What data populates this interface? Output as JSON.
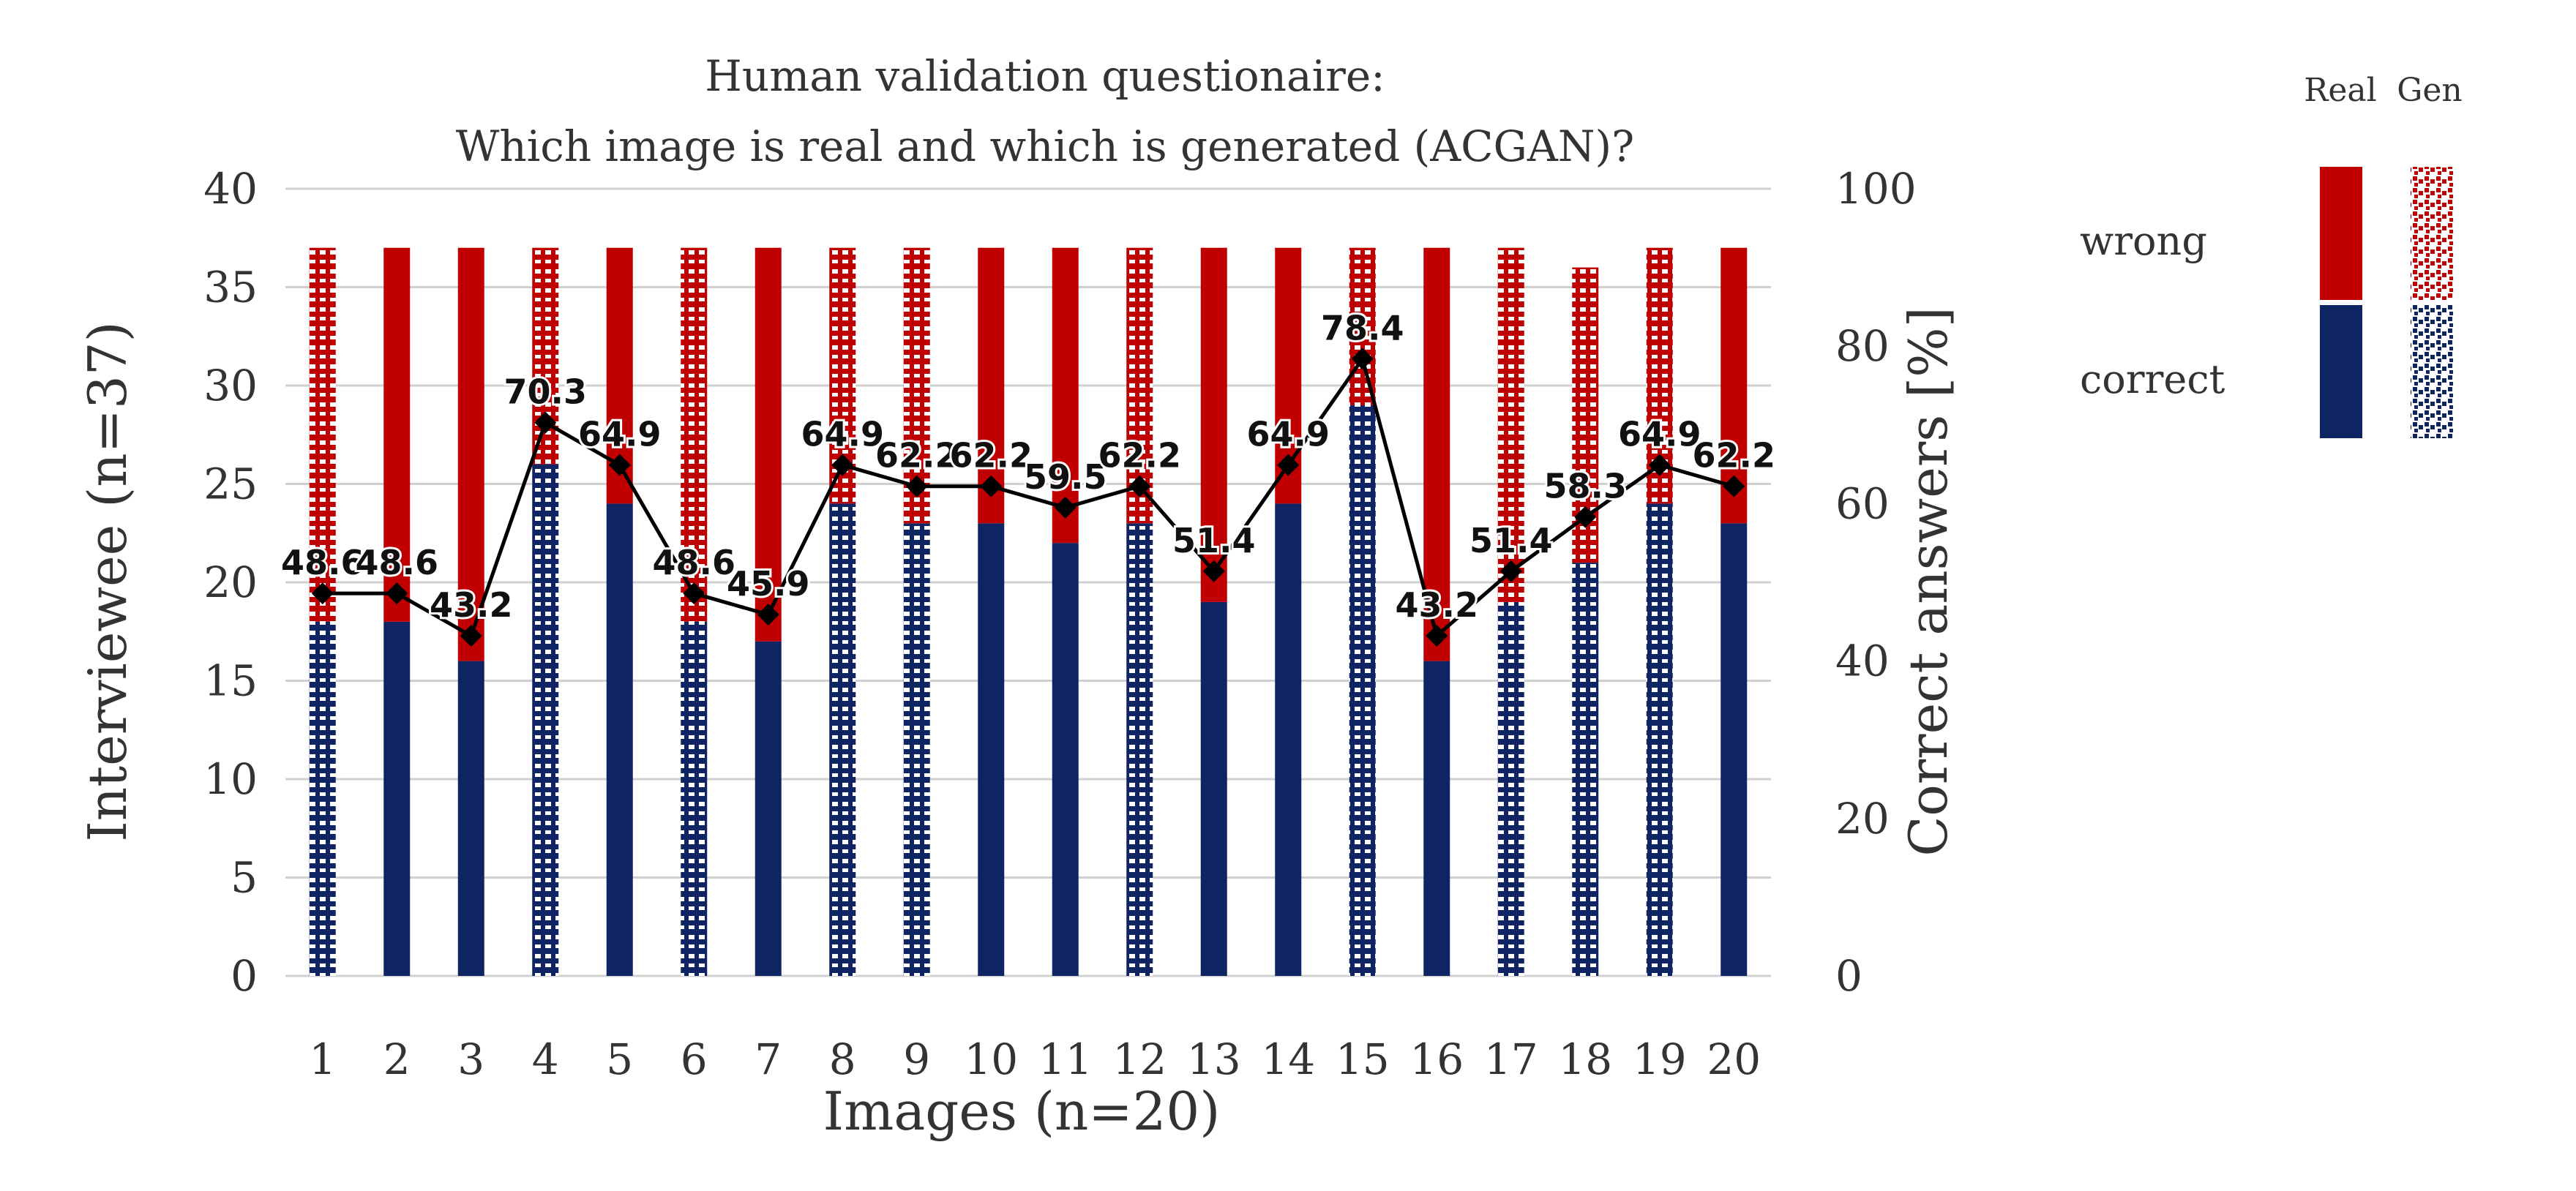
{
  "chart_data": {
    "type": "bar",
    "stacked": true,
    "title": [
      "Human validation  questionaire:",
      "Which image is real and which is generated (ACGAN)?"
    ],
    "xlabel": "Images (n=20)",
    "ylabel": "Interviewee (n=37)",
    "y2label": "Correct answers [%]",
    "ylim": [
      0,
      40
    ],
    "y2lim": [
      0,
      100
    ],
    "yticks": [
      0,
      5,
      10,
      15,
      20,
      25,
      30,
      35,
      40
    ],
    "y2ticks": [
      0,
      20,
      40,
      60,
      80,
      100
    ],
    "grid": true,
    "categories": [
      "1",
      "2",
      "3",
      "4",
      "5",
      "6",
      "7",
      "8",
      "9",
      "10",
      "11",
      "12",
      "13",
      "14",
      "15",
      "16",
      "17",
      "18",
      "19",
      "20"
    ],
    "image_type": [
      "Gen",
      "Real",
      "Real",
      "Gen",
      "Real",
      "Gen",
      "Real",
      "Gen",
      "Gen",
      "Real",
      "Real",
      "Gen",
      "Real",
      "Real",
      "Gen",
      "Real",
      "Gen",
      "Gen",
      "Gen",
      "Real"
    ],
    "series": [
      {
        "name": "correct",
        "values": [
          18,
          18,
          16,
          26,
          24,
          18,
          17,
          24,
          23,
          23,
          22,
          23,
          19,
          24,
          29,
          16,
          19,
          21,
          24,
          23
        ]
      },
      {
        "name": "wrong",
        "values": [
          19,
          19,
          21,
          11,
          13,
          19,
          20,
          13,
          14,
          14,
          15,
          14,
          18,
          13,
          8,
          21,
          18,
          15,
          13,
          14
        ]
      }
    ],
    "line": {
      "axis": "y2",
      "values": [
        48.6,
        48.6,
        43.2,
        70.3,
        64.9,
        48.6,
        45.9,
        64.9,
        62.2,
        62.2,
        59.5,
        62.2,
        51.4,
        64.9,
        78.4,
        43.2,
        51.4,
        58.3,
        64.9,
        62.2
      ],
      "labels": [
        "48.6",
        "48.6",
        "43.2",
        "70.3",
        "64.9",
        "48.6",
        "45.9",
        "64.9",
        "62.2",
        "62.2",
        "59.5",
        "62.2",
        "51.4",
        "64.9",
        "78.4",
        "43.2",
        "51.4",
        "58.3",
        "64.9",
        "62.2"
      ]
    },
    "legend": {
      "placement": "right",
      "columns": [
        "Real",
        "Gen"
      ],
      "rows": [
        "wrong",
        "correct"
      ]
    },
    "colors": {
      "wrong": "#c00000",
      "correct": "#0f2463",
      "line": "#000000",
      "grid": "#d0d0d0"
    }
  }
}
